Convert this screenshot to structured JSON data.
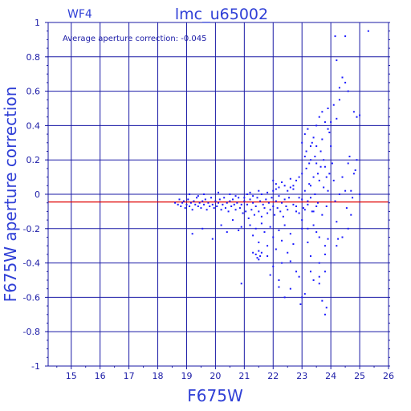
{
  "chart_data": {
    "type": "scatter",
    "title": "lmc_u65002",
    "panel_label": "WF4",
    "xlabel": "F675W",
    "ylabel": "F675W aperture correction",
    "annotation": "Average aperture correction: -0.045",
    "average_correction": -0.045,
    "xlim": [
      14.2,
      26
    ],
    "ylim": [
      -1,
      1
    ],
    "x_ticks": [
      15,
      16,
      17,
      18,
      19,
      20,
      21,
      22,
      23,
      24,
      25,
      26
    ],
    "y_ticks": [
      -1,
      -0.8,
      -0.6,
      -0.4,
      -0.2,
      0,
      0.2,
      0.4,
      0.6,
      0.8,
      1
    ],
    "x_tick_labels": [
      "15",
      "16",
      "17",
      "18",
      "19",
      "20",
      "21",
      "22",
      "23",
      "24",
      "25",
      "26"
    ],
    "y_tick_labels": [
      "-1",
      "-0.8",
      "-0.6",
      "-0.4",
      "-0.2",
      "0",
      "0.2",
      "0.4",
      "0.6",
      "0.8",
      "1"
    ],
    "grid": true,
    "colors": {
      "frame": "#1a1aa6",
      "text": "#2f3fd6",
      "points": "#1a1aff",
      "reference_line": "#e00000"
    },
    "points": [
      [
        18.6,
        -0.05
      ],
      [
        18.7,
        -0.06
      ],
      [
        18.75,
        -0.03
      ],
      [
        18.8,
        -0.07
      ],
      [
        18.85,
        -0.05
      ],
      [
        18.9,
        -0.04
      ],
      [
        18.95,
        -0.08
      ],
      [
        19.0,
        -0.06
      ],
      [
        19.05,
        -0.03
      ],
      [
        19.1,
        -0.07
      ],
      [
        19.15,
        -0.05
      ],
      [
        19.2,
        -0.09
      ],
      [
        19.25,
        -0.04
      ],
      [
        19.3,
        -0.06
      ],
      [
        19.35,
        -0.02
      ],
      [
        19.4,
        -0.07
      ],
      [
        19.45,
        -0.05
      ],
      [
        19.5,
        -0.08
      ],
      [
        19.55,
        -0.04
      ],
      [
        19.6,
        -0.06
      ],
      [
        19.65,
        -0.03
      ],
      [
        19.7,
        -0.09
      ],
      [
        19.75,
        -0.05
      ],
      [
        19.8,
        -0.07
      ],
      [
        19.85,
        -0.02
      ],
      [
        19.9,
        -0.06
      ],
      [
        19.95,
        -0.08
      ],
      [
        20.0,
        -0.04
      ],
      [
        20.05,
        -0.07
      ],
      [
        20.1,
        -0.05
      ],
      [
        20.15,
        -0.03
      ],
      [
        20.2,
        -0.09
      ],
      [
        20.25,
        -0.06
      ],
      [
        20.3,
        -0.02
      ],
      [
        20.35,
        -0.08
      ],
      [
        20.4,
        -0.05
      ],
      [
        20.45,
        -0.1
      ],
      [
        20.5,
        -0.04
      ],
      [
        20.55,
        -0.07
      ],
      [
        20.6,
        -0.03
      ],
      [
        20.65,
        -0.06
      ],
      [
        20.7,
        -0.09
      ],
      [
        20.75,
        -0.05
      ],
      [
        20.8,
        -0.02
      ],
      [
        20.85,
        -0.08
      ],
      [
        20.9,
        -0.06
      ],
      [
        20.95,
        -0.11
      ],
      [
        21.0,
        -0.04
      ],
      [
        19.2,
        -0.23
      ],
      [
        19.55,
        -0.2
      ],
      [
        19.9,
        -0.26
      ],
      [
        20.2,
        -0.18
      ],
      [
        20.4,
        -0.22
      ],
      [
        20.6,
        -0.15
      ],
      [
        20.8,
        -0.21
      ],
      [
        20.9,
        -0.19
      ],
      [
        19.1,
        0.0
      ],
      [
        19.4,
        -0.01
      ],
      [
        19.6,
        0.0
      ],
      [
        20.1,
        0.01
      ],
      [
        20.7,
        -0.01
      ],
      [
        20.5,
        0.0
      ],
      [
        21.0,
        -0.02
      ],
      [
        21.05,
        -0.1
      ],
      [
        21.1,
        -0.06
      ],
      [
        21.15,
        -0.14
      ],
      [
        21.2,
        -0.03
      ],
      [
        21.25,
        -0.09
      ],
      [
        21.3,
        -0.05
      ],
      [
        21.35,
        -0.12
      ],
      [
        21.4,
        -0.07
      ],
      [
        21.45,
        -0.02
      ],
      [
        21.5,
        -0.1
      ],
      [
        21.55,
        -0.04
      ],
      [
        21.6,
        -0.13
      ],
      [
        21.65,
        -0.06
      ],
      [
        21.7,
        -0.08
      ],
      [
        21.75,
        -0.03
      ],
      [
        21.8,
        -0.11
      ],
      [
        21.85,
        -0.05
      ],
      [
        21.9,
        -0.09
      ],
      [
        21.95,
        -0.02
      ],
      [
        22.0,
        -0.07
      ],
      [
        22.05,
        -0.12
      ],
      [
        22.1,
        -0.04
      ],
      [
        22.15,
        -0.08
      ],
      [
        22.2,
        -0.01
      ],
      [
        22.25,
        -0.1
      ],
      [
        22.3,
        -0.05
      ],
      [
        22.35,
        -0.13
      ],
      [
        22.4,
        -0.03
      ],
      [
        22.45,
        -0.07
      ],
      [
        22.5,
        -0.09
      ],
      [
        22.55,
        -0.02
      ],
      [
        21.1,
        0.0
      ],
      [
        21.2,
        0.01
      ],
      [
        21.3,
        -0.01
      ],
      [
        21.5,
        0.02
      ],
      [
        21.6,
        0.0
      ],
      [
        21.8,
        0.01
      ],
      [
        22.0,
        0.02
      ],
      [
        22.1,
        0.03
      ],
      [
        21.2,
        -0.18
      ],
      [
        21.3,
        -0.24
      ],
      [
        21.4,
        -0.2
      ],
      [
        21.5,
        -0.28
      ],
      [
        21.6,
        -0.17
      ],
      [
        21.7,
        -0.22
      ],
      [
        21.8,
        -0.3
      ],
      [
        21.9,
        -0.19
      ],
      [
        22.0,
        -0.25
      ],
      [
        22.1,
        -0.32
      ],
      [
        22.2,
        -0.21
      ],
      [
        22.3,
        -0.27
      ],
      [
        22.4,
        -0.18
      ],
      [
        22.5,
        -0.34
      ],
      [
        22.6,
        -0.23
      ],
      [
        22.7,
        -0.29
      ],
      [
        21.3,
        -0.34
      ],
      [
        21.5,
        -0.38
      ],
      [
        21.8,
        -0.36
      ],
      [
        22.0,
        -0.42
      ],
      [
        22.3,
        -0.4
      ],
      [
        22.6,
        -0.39
      ],
      [
        22.8,
        -0.45
      ],
      [
        21.4,
        -0.35
      ],
      [
        21.45,
        -0.37
      ],
      [
        21.5,
        -0.33
      ],
      [
        21.55,
        -0.36
      ],
      [
        21.6,
        -0.34
      ],
      [
        20.9,
        -0.52
      ],
      [
        22.2,
        -0.5
      ],
      [
        22.6,
        -0.55
      ],
      [
        22.9,
        -0.48
      ],
      [
        23.1,
        -0.58
      ],
      [
        22.95,
        -0.64
      ],
      [
        23.4,
        -0.5
      ],
      [
        23.6,
        -0.52
      ],
      [
        23.8,
        -0.45
      ],
      [
        23.85,
        -0.66
      ],
      [
        23.8,
        -0.7
      ],
      [
        23.7,
        -0.62
      ],
      [
        23.6,
        -0.4
      ],
      [
        23.3,
        -0.36
      ],
      [
        22.2,
        -0.54
      ],
      [
        21.9,
        -0.47
      ],
      [
        22.4,
        -0.6
      ],
      [
        23.0,
        -0.6
      ],
      [
        22.6,
        0.04
      ],
      [
        22.7,
        -0.06
      ],
      [
        22.8,
        0.08
      ],
      [
        22.9,
        -0.02
      ],
      [
        23.0,
        0.12
      ],
      [
        23.05,
        -0.08
      ],
      [
        23.1,
        0.02
      ],
      [
        23.15,
        0.15
      ],
      [
        23.2,
        -0.04
      ],
      [
        23.25,
        0.06
      ],
      [
        23.3,
        0.2
      ],
      [
        23.35,
        -0.1
      ],
      [
        23.4,
        0.1
      ],
      [
        23.45,
        0.0
      ],
      [
        23.5,
        0.18
      ],
      [
        23.55,
        -0.05
      ],
      [
        23.6,
        0.08
      ],
      [
        23.65,
        0.25
      ],
      [
        23.7,
        -0.12
      ],
      [
        23.75,
        0.04
      ],
      [
        23.8,
        0.16
      ],
      [
        23.85,
        -0.07
      ],
      [
        23.9,
        0.02
      ],
      [
        23.95,
        0.12
      ],
      [
        22.7,
        0.05
      ],
      [
        22.8,
        -0.1
      ],
      [
        22.9,
        0.1
      ],
      [
        23.0,
        -0.15
      ],
      [
        23.1,
        0.22
      ],
      [
        23.2,
        -0.2
      ],
      [
        23.3,
        0.05
      ],
      [
        23.4,
        -0.18
      ],
      [
        23.5,
        0.28
      ],
      [
        23.6,
        -0.25
      ],
      [
        23.7,
        0.32
      ],
      [
        23.8,
        -0.3
      ],
      [
        23.9,
        0.38
      ],
      [
        23.0,
        0.3
      ],
      [
        23.1,
        0.35
      ],
      [
        23.2,
        0.38
      ],
      [
        23.3,
        0.28
      ],
      [
        23.4,
        0.33
      ],
      [
        23.5,
        0.4
      ],
      [
        23.6,
        0.45
      ],
      [
        23.7,
        0.48
      ],
      [
        23.8,
        0.42
      ],
      [
        23.9,
        0.5
      ],
      [
        23.95,
        0.36
      ],
      [
        24.0,
        0.28
      ],
      [
        24.05,
        0.18
      ],
      [
        24.1,
        0.08
      ],
      [
        24.15,
        -0.04
      ],
      [
        24.2,
        -0.16
      ],
      [
        24.25,
        -0.26
      ],
      [
        24.3,
        0.0
      ],
      [
        24.4,
        0.1
      ],
      [
        24.5,
        0.02
      ],
      [
        24.6,
        0.18
      ],
      [
        24.7,
        -0.12
      ],
      [
        24.8,
        0.12
      ],
      [
        24.9,
        0.2
      ],
      [
        25.0,
        0.46
      ],
      [
        24.8,
        0.48
      ],
      [
        24.6,
        0.6
      ],
      [
        24.5,
        0.65
      ],
      [
        24.4,
        0.68
      ],
      [
        24.3,
        0.62
      ],
      [
        24.2,
        0.78
      ],
      [
        24.15,
        0.92
      ],
      [
        24.5,
        0.92
      ],
      [
        25.3,
        0.95
      ],
      [
        24.1,
        0.52
      ],
      [
        24.3,
        0.55
      ],
      [
        24.2,
        0.44
      ],
      [
        24.0,
        0.42
      ],
      [
        24.9,
        0.45
      ],
      [
        24.6,
        -0.2
      ],
      [
        24.2,
        -0.3
      ],
      [
        24.4,
        -0.25
      ],
      [
        23.0,
        -0.2
      ],
      [
        23.2,
        -0.28
      ],
      [
        23.5,
        -0.22
      ],
      [
        23.8,
        -0.35
      ],
      [
        23.3,
        -0.45
      ],
      [
        23.6,
        -0.48
      ],
      [
        23.9,
        -0.26
      ],
      [
        22.8,
        -0.07
      ],
      [
        22.9,
        -0.11
      ],
      [
        23.0,
        -0.03
      ],
      [
        23.1,
        -0.09
      ],
      [
        23.2,
        -0.06
      ],
      [
        23.3,
        -0.02
      ],
      [
        23.4,
        -0.1
      ],
      [
        23.5,
        -0.07
      ],
      [
        22.4,
        0.05
      ],
      [
        22.5,
        0.02
      ],
      [
        22.6,
        0.09
      ],
      [
        22.7,
        0.03
      ],
      [
        22.3,
        0.07
      ],
      [
        22.2,
        0.04
      ],
      [
        22.1,
        0.06
      ],
      [
        22.0,
        0.08
      ],
      [
        23.15,
        0.25
      ],
      [
        23.25,
        0.18
      ],
      [
        23.35,
        0.3
      ],
      [
        23.45,
        0.22
      ],
      [
        23.55,
        0.12
      ],
      [
        23.65,
        0.16
      ],
      [
        23.75,
        0.2
      ],
      [
        23.85,
        0.1
      ],
      [
        24.7,
        0.02
      ],
      [
        24.75,
        -0.02
      ],
      [
        25.0,
        0.0
      ],
      [
        24.65,
        0.22
      ],
      [
        24.85,
        0.14
      ],
      [
        24.55,
        -0.08
      ]
    ]
  }
}
